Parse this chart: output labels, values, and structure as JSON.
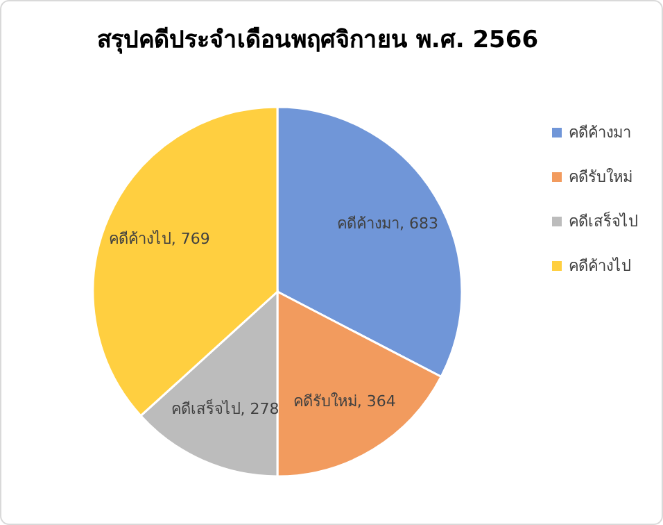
{
  "chart_data": {
    "type": "pie",
    "title": "สรุปคดีประจำเดือนพฤศจิกายน พ.ศ. 2566",
    "categories": [
      "คดีค้างมา",
      "คดีรับใหม่",
      "คดีเสร็จไป",
      "คดีค้างไป"
    ],
    "values": [
      683,
      364,
      278,
      769
    ],
    "value_labels": [
      "คดีค้างมา, 683",
      "คดีรับใหม่, 364",
      "คดีเสร็จไป, 278",
      "คดีค้างไป, 769"
    ],
    "colors": [
      "#7096d8",
      "#f29b5e",
      "#bcbcbc",
      "#ffcf40"
    ],
    "legend": "right"
  }
}
